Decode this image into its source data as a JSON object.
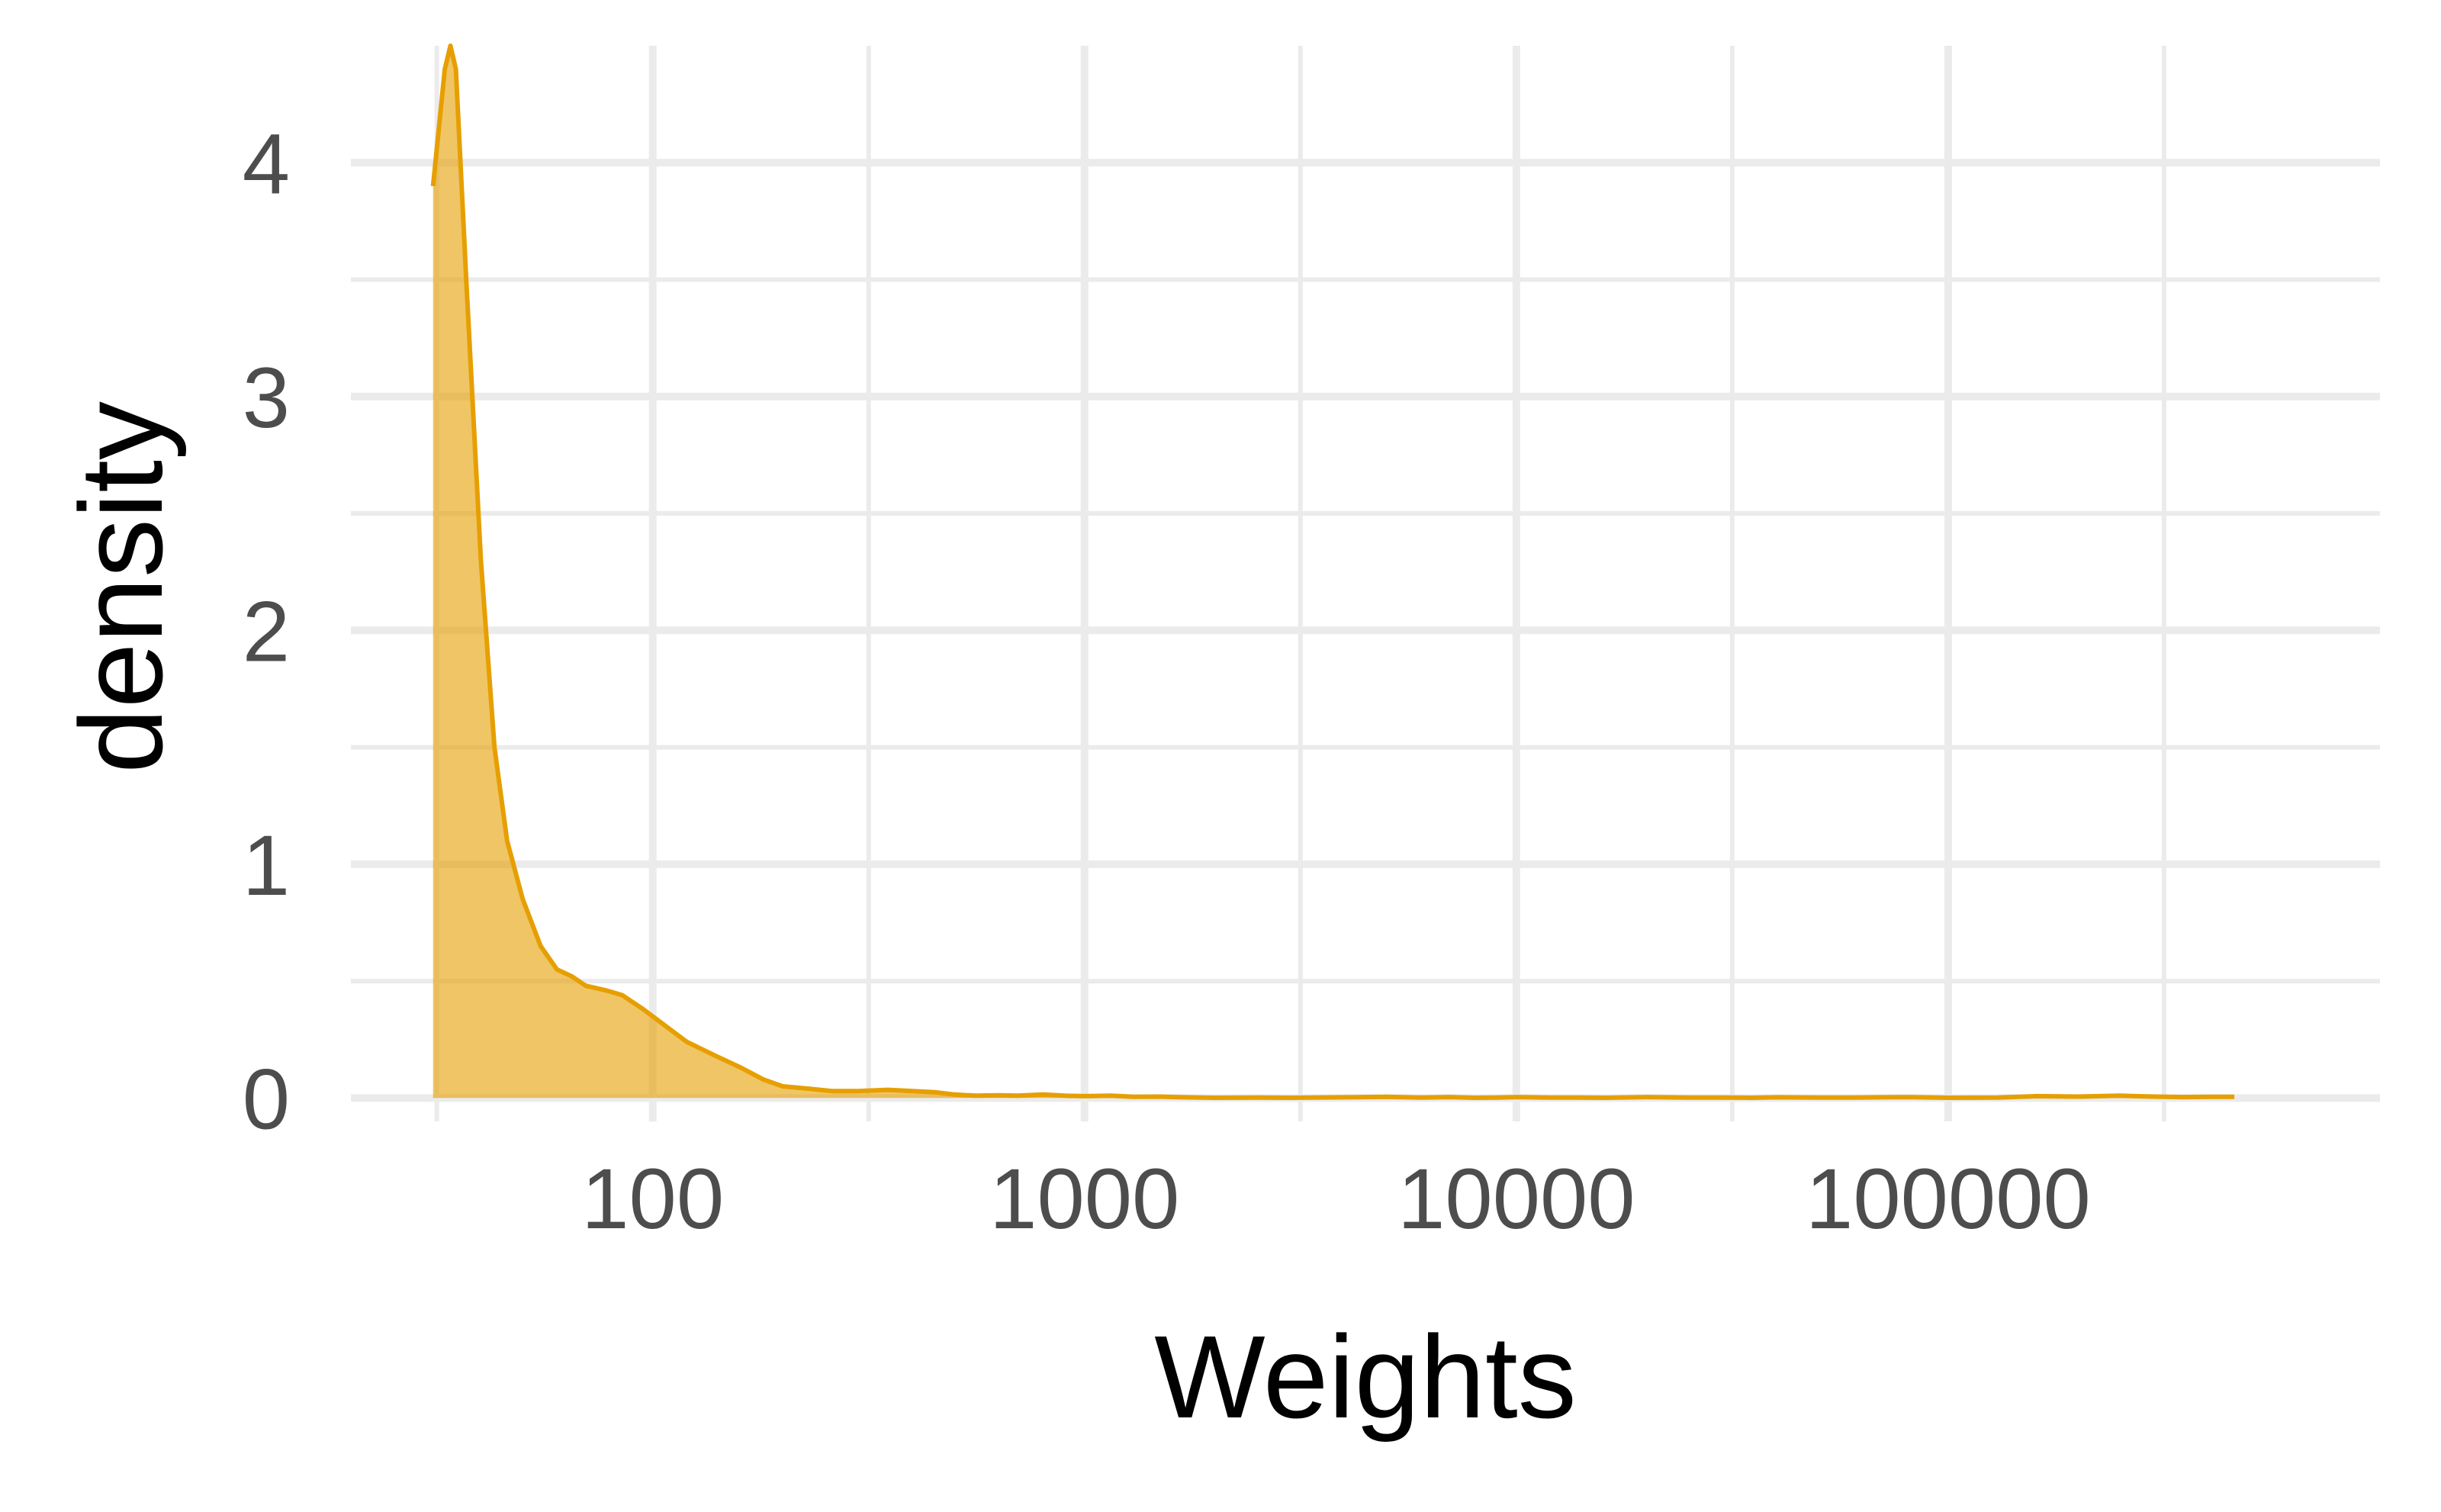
{
  "chart_data": {
    "type": "area",
    "subtype": "density",
    "x_scale": "log10",
    "xlabel": "Weights",
    "ylabel": "density",
    "x_ticks": [
      100,
      1000,
      10000,
      100000
    ],
    "x_tick_labels": [
      "100",
      "1000",
      "10000",
      "100000"
    ],
    "y_ticks": [
      0,
      1,
      2,
      3,
      4
    ],
    "y_tick_labels": [
      "0",
      "1",
      "2",
      "3",
      "4"
    ],
    "xlim": [
      20,
      1000000
    ],
    "ylim": [
      -0.1,
      4.5
    ],
    "grid": true,
    "legend": "none",
    "fill_color": "#E69F00",
    "fill_opacity": 0.6,
    "line_color": "#E69F00",
    "series": [
      {
        "x": [
          31,
          33,
          34,
          35,
          37,
          40,
          43,
          46,
          50,
          55,
          60,
          65,
          70,
          78,
          85,
          95,
          105,
          120,
          140,
          160,
          180,
          200,
          230,
          260,
          300,
          350,
          400,
          450,
          500,
          560,
          630,
          700,
          800,
          900,
          1000,
          1150,
          1300,
          1500,
          1700,
          2000,
          2500,
          3000,
          4000,
          5000,
          6000,
          7000,
          8000,
          9000,
          10000,
          12000,
          14000,
          16000,
          20000,
          25000,
          30000,
          35000,
          40000,
          50000,
          60000,
          70000,
          80000,
          100000,
          130000,
          160000,
          200000,
          250000,
          300000,
          350000,
          400000,
          460000
        ],
        "y": [
          3.9,
          4.4,
          4.5,
          4.4,
          3.5,
          2.3,
          1.5,
          1.1,
          0.85,
          0.65,
          0.55,
          0.52,
          0.48,
          0.46,
          0.44,
          0.38,
          0.32,
          0.24,
          0.18,
          0.13,
          0.08,
          0.05,
          0.04,
          0.03,
          0.03,
          0.035,
          0.03,
          0.025,
          0.015,
          0.01,
          0.012,
          0.01,
          0.015,
          0.01,
          0.008,
          0.01,
          0.005,
          0.006,
          0.003,
          0.001,
          0.002,
          0.001,
          0.003,
          0.005,
          0.002,
          0.004,
          0.001,
          0.002,
          0.004,
          0.002,
          0.002,
          0.001,
          0.004,
          0.002,
          0.002,
          0.001,
          0.003,
          0.002,
          0.002,
          0.003,
          0.004,
          0.001,
          0.002,
          0.008,
          0.006,
          0.01,
          0.006,
          0.004,
          0.005,
          0.005
        ]
      }
    ]
  }
}
